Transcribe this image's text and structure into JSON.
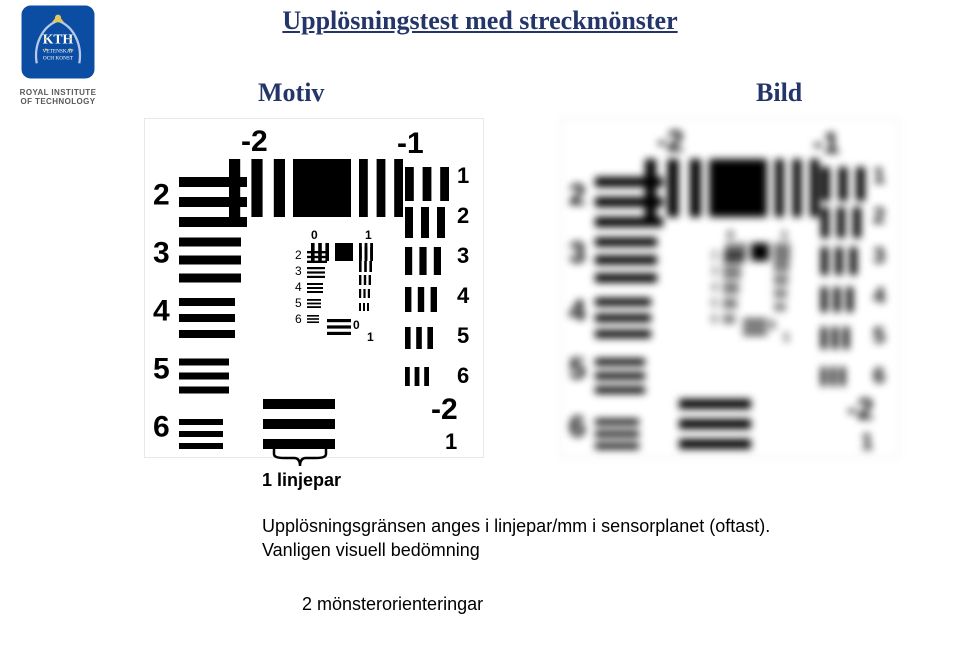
{
  "logo": {
    "bg_color": "#0b4da2",
    "text1": "KTH",
    "text2": "VETENSKAP",
    "text3": "OCH KONST",
    "subtitle_line1": "ROYAL INSTITUTE",
    "subtitle_line2": "OF TECHNOLOGY"
  },
  "title": "Upplösningstest med streckmönster",
  "left_label": "Motiv",
  "right_label": "Bild",
  "linjepar_label": "1 linjepar",
  "body_line1": "Upplösningsgränsen anges i linjepar/mm i sensorplanet (oftast).",
  "body_line2": "Vanligen visuell bedömning",
  "body_line3": "2 mönsterorienteringar",
  "chart": {
    "overall_top_labels": [
      "-2",
      "-1"
    ],
    "left_column_numbers": [
      "2",
      "3",
      "4",
      "5",
      "6"
    ],
    "right_column_numbers": [
      "1",
      "2",
      "3",
      "4",
      "5",
      "6"
    ],
    "bottom_right_labels": [
      "-2",
      "1"
    ],
    "inner_left_column_numbers": [
      "2",
      "3",
      "4",
      "5",
      "6"
    ],
    "inner_top_labels": [
      "0",
      "1"
    ],
    "inner_bottom_labels": [
      "0",
      "1"
    ],
    "color_black": "#000000",
    "color_bg": "#ffffff",
    "label_fontsize_big": 30,
    "label_fontsize_small": 12
  }
}
